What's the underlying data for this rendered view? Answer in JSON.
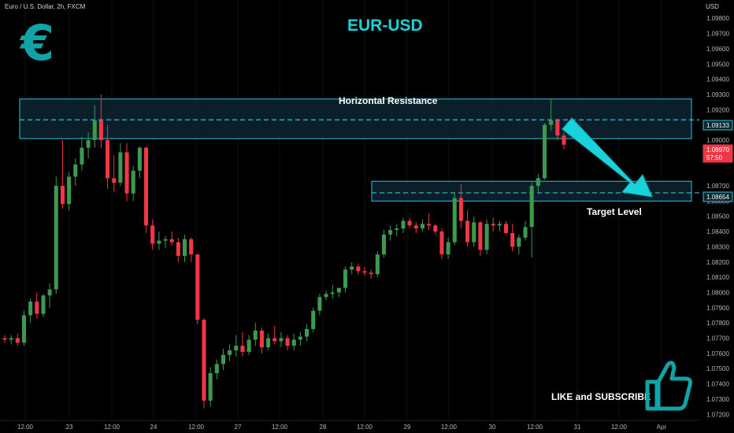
{
  "header": {
    "symbol_label": "Euro / U.S. Dollar, 2h, FXCM",
    "title": "EUR-USD",
    "currency": "USD"
  },
  "annotations": {
    "resistance_label": "Horizontal Resistance",
    "target_label": "Target Level",
    "cta_label": "LIKE and SUBSCRIBE"
  },
  "icons": [
    "euro-logo-icon",
    "thumbs-up-icon",
    "down-arrow-icon"
  ],
  "colors": {
    "background": "#000000",
    "up_candle": "#3c9a4f",
    "down_candle": "#f23645",
    "zone_border": "#26c6da",
    "zone_fill": "#0e2a38",
    "accent": "#19d3da",
    "price_label_bg": "#f23645"
  },
  "chart_data": {
    "type": "candlestick",
    "y_axis": {
      "ticks": [
        "1.09800",
        "1.09700",
        "1.09600",
        "1.09500",
        "1.09400",
        "1.09300",
        "1.09200",
        "1.09000",
        "1.08900",
        "1.08700",
        "1.08600",
        "1.08500",
        "1.08400",
        "1.08300",
        "1.08200",
        "1.08100",
        "1.08000",
        "1.07900",
        "1.07800",
        "1.07700",
        "1.07600",
        "1.07500",
        "1.07400",
        "1.07300",
        "1.07200"
      ],
      "range": [
        1.0716,
        1.0992
      ]
    },
    "x_axis": {
      "ticks": [
        "12:00",
        "23",
        "12:00",
        "24",
        "12:00",
        "27",
        "12:00",
        "28",
        "12:00",
        "29",
        "12:00",
        "30",
        "12:00",
        "31",
        "12:00",
        "Apr"
      ]
    },
    "price_labels": [
      {
        "value": "1.09133",
        "style": "outline"
      },
      {
        "value": "1.08970",
        "style": "filled"
      },
      {
        "value": "57:50",
        "style": "filled"
      },
      {
        "value": "1.08654",
        "style": "outline"
      }
    ],
    "zones": [
      {
        "name": "resistance",
        "top": 1.0927,
        "bottom": 1.0901,
        "dashed": 1.09133
      },
      {
        "name": "target",
        "top": 1.0873,
        "bottom": 1.086,
        "dashed": 1.08654
      }
    ],
    "candles": [
      [
        1.077,
        1.0772,
        1.0767,
        1.0769
      ],
      [
        1.0769,
        1.0772,
        1.0766,
        1.077
      ],
      [
        1.077,
        1.0773,
        1.0765,
        1.0767
      ],
      [
        1.0767,
        1.0788,
        1.0765,
        1.0785
      ],
      [
        1.0785,
        1.0796,
        1.078,
        1.0794
      ],
      [
        1.0794,
        1.08,
        1.0783,
        1.0786
      ],
      [
        1.0786,
        1.0799,
        1.0784,
        1.0798
      ],
      [
        1.0798,
        1.0806,
        1.079,
        1.0802
      ],
      [
        1.0802,
        1.0876,
        1.0799,
        1.087
      ],
      [
        1.087,
        1.09,
        1.0855,
        1.0858
      ],
      [
        1.0858,
        1.0879,
        1.0854,
        1.0876
      ],
      [
        1.0876,
        1.0888,
        1.087,
        1.0884
      ],
      [
        1.0884,
        1.0902,
        1.088,
        1.0895
      ],
      [
        1.0895,
        1.0905,
        1.0888,
        1.09
      ],
      [
        1.09,
        1.0923,
        1.0895,
        1.0913
      ],
      [
        1.0913,
        1.093,
        1.0895,
        1.09
      ],
      [
        1.09,
        1.091,
        1.0868,
        1.0875
      ],
      [
        1.0875,
        1.089,
        1.0866,
        1.0872
      ],
      [
        1.0872,
        1.0898,
        1.087,
        1.0892
      ],
      [
        1.0892,
        1.0898,
        1.086,
        1.0865
      ],
      [
        1.0865,
        1.0883,
        1.086,
        1.088
      ],
      [
        1.088,
        1.0896,
        1.0875,
        1.0895
      ],
      [
        1.0895,
        1.0896,
        1.0839,
        1.0844
      ],
      [
        1.0844,
        1.0848,
        1.0828,
        1.0832
      ],
      [
        1.0832,
        1.084,
        1.0828,
        1.0834
      ],
      [
        1.0834,
        1.0837,
        1.0829,
        1.0835
      ],
      [
        1.0835,
        1.084,
        1.0831,
        1.0833
      ],
      [
        1.0833,
        1.0836,
        1.082,
        1.0824
      ],
      [
        1.0824,
        1.0838,
        1.082,
        1.0835
      ],
      [
        1.0835,
        1.0836,
        1.082,
        1.0825
      ],
      [
        1.0825,
        1.0825,
        1.0779,
        1.0782
      ],
      [
        1.0782,
        1.0783,
        1.0724,
        1.0729
      ],
      [
        1.0729,
        1.0751,
        1.0725,
        1.0747
      ],
      [
        1.0747,
        1.0756,
        1.0743,
        1.0753
      ],
      [
        1.0753,
        1.0763,
        1.0749,
        1.0759
      ],
      [
        1.0759,
        1.0766,
        1.0755,
        1.0762
      ],
      [
        1.0762,
        1.0772,
        1.0758,
        1.0765
      ],
      [
        1.0765,
        1.0774,
        1.0758,
        1.0761
      ],
      [
        1.0761,
        1.0772,
        1.0759,
        1.0769
      ],
      [
        1.0769,
        1.078,
        1.0765,
        1.0775
      ],
      [
        1.0775,
        1.0777,
        1.076,
        1.0764
      ],
      [
        1.0764,
        1.0773,
        1.0762,
        1.077
      ],
      [
        1.077,
        1.0778,
        1.0766,
        1.0768
      ],
      [
        1.0768,
        1.0774,
        1.0764,
        1.077
      ],
      [
        1.077,
        1.0772,
        1.0762,
        1.0765
      ],
      [
        1.0765,
        1.0773,
        1.0762,
        1.0769
      ],
      [
        1.0769,
        1.0774,
        1.0765,
        1.0771
      ],
      [
        1.0771,
        1.0779,
        1.0768,
        1.0776
      ],
      [
        1.0776,
        1.079,
        1.0774,
        1.0788
      ],
      [
        1.0788,
        1.0799,
        1.0785,
        1.0797
      ],
      [
        1.0797,
        1.0801,
        1.0795,
        1.0799
      ],
      [
        1.0799,
        1.0805,
        1.0796,
        1.08
      ],
      [
        1.08,
        1.0802,
        1.0797,
        1.0803
      ],
      [
        1.0803,
        1.0817,
        1.08,
        1.0815
      ],
      [
        1.0815,
        1.082,
        1.0812,
        1.0817
      ],
      [
        1.0817,
        1.0819,
        1.0812,
        1.0814
      ],
      [
        1.0814,
        1.0817,
        1.0811,
        1.0813
      ],
      [
        1.0813,
        1.0815,
        1.0809,
        1.0812
      ],
      [
        1.0812,
        1.0827,
        1.081,
        1.0825
      ],
      [
        1.0825,
        1.0841,
        1.0823,
        1.0838
      ],
      [
        1.0838,
        1.0844,
        1.0834,
        1.0841
      ],
      [
        1.0841,
        1.0845,
        1.0837,
        1.0842
      ],
      [
        1.0842,
        1.0849,
        1.0839,
        1.0847
      ],
      [
        1.0847,
        1.0849,
        1.0842,
        1.0844
      ],
      [
        1.0844,
        1.0846,
        1.0839,
        1.0842
      ],
      [
        1.0842,
        1.0848,
        1.084,
        1.0845
      ],
      [
        1.0845,
        1.0852,
        1.0841,
        1.0844
      ],
      [
        1.0844,
        1.0845,
        1.0838,
        1.084
      ],
      [
        1.084,
        1.0842,
        1.0822,
        1.0825
      ],
      [
        1.0825,
        1.0836,
        1.0822,
        1.0833
      ],
      [
        1.0833,
        1.0866,
        1.0831,
        1.0862
      ],
      [
        1.0862,
        1.0871,
        1.0842,
        1.0847
      ],
      [
        1.0847,
        1.0854,
        1.083,
        1.0833
      ],
      [
        1.0833,
        1.085,
        1.083,
        1.0846
      ],
      [
        1.0846,
        1.0847,
        1.0824,
        1.0828
      ],
      [
        1.0828,
        1.0848,
        1.0825,
        1.0845
      ],
      [
        1.0845,
        1.0849,
        1.084,
        1.0844
      ],
      [
        1.0844,
        1.0847,
        1.084,
        1.0845
      ],
      [
        1.0845,
        1.0847,
        1.0838,
        1.0839
      ],
      [
        1.0839,
        1.0845,
        1.0827,
        1.083
      ],
      [
        1.083,
        1.0838,
        1.0825,
        1.0836
      ],
      [
        1.0836,
        1.0847,
        1.0834,
        1.0843
      ],
      [
        1.0843,
        1.0872,
        1.0823,
        1.087
      ],
      [
        1.087,
        1.0878,
        1.0866,
        1.0875
      ],
      [
        1.0875,
        1.0911,
        1.0874,
        1.091
      ],
      [
        1.091,
        1.0927,
        1.0906,
        1.0913
      ],
      [
        1.0913,
        1.0914,
        1.09,
        1.0903
      ],
      [
        1.0903,
        1.0905,
        1.0894,
        1.0897
      ]
    ]
  }
}
